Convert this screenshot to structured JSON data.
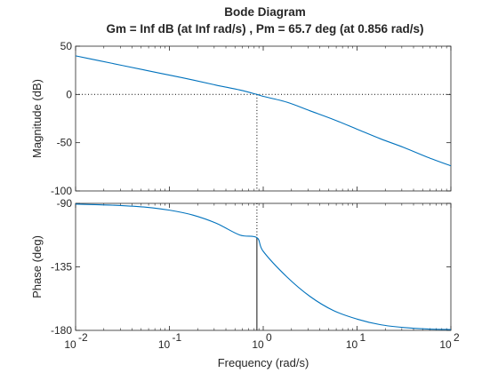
{
  "chart_data": {
    "type": "line",
    "title": "Bode Diagram",
    "subtitle": "Gm = Inf dB (at Inf rad/s) ,  Pm = 65.7 deg (at 0.856 rad/s)",
    "xlabel": "Frequency  (rad/s)",
    "xscale": "log",
    "xlim": [
      0.01,
      100
    ],
    "x_ticks": [
      {
        "base": "10",
        "exp": "-2"
      },
      {
        "base": "10",
        "exp": "-1"
      },
      {
        "base": "10",
        "exp": "0"
      },
      {
        "base": "10",
        "exp": "1"
      },
      {
        "base": "10",
        "exp": "2"
      }
    ],
    "line_color": "#0072BD",
    "marker_color": "#262626",
    "magnitude": {
      "ylabel": "Magnitude (dB)",
      "ylim": [
        -100,
        50
      ],
      "yticks": [
        "50",
        "0",
        "-50",
        "-100"
      ],
      "reference_level": 0,
      "x": [
        0.01,
        0.0178,
        0.0316,
        0.0562,
        0.1,
        0.178,
        0.316,
        0.562,
        0.856,
        1,
        1.78,
        3.16,
        5.62,
        10,
        17.8,
        31.6,
        56.2,
        100
      ],
      "y": [
        40,
        35,
        30,
        25,
        20,
        15,
        9.6,
        4.6,
        0,
        -2,
        -8,
        -17,
        -26,
        -36,
        -46,
        -55,
        -65,
        -74
      ]
    },
    "phase": {
      "ylabel": "Phase (deg)",
      "ylim": [
        -180,
        -90
      ],
      "yticks": [
        "-90",
        "-135",
        "-180"
      ],
      "x": [
        0.01,
        0.0178,
        0.0316,
        0.0562,
        0.1,
        0.178,
        0.316,
        0.562,
        0.856,
        1,
        1.78,
        3.16,
        5.62,
        10,
        17.8,
        31.6,
        56.2,
        100
      ],
      "y": [
        -90.5,
        -91,
        -91.6,
        -92.7,
        -94.8,
        -98.3,
        -104.1,
        -112.4,
        -114.3,
        -124,
        -142,
        -156,
        -166,
        -172,
        -176,
        -178,
        -179,
        -179.4
      ]
    },
    "phase_margin_frequency": 0.856
  }
}
